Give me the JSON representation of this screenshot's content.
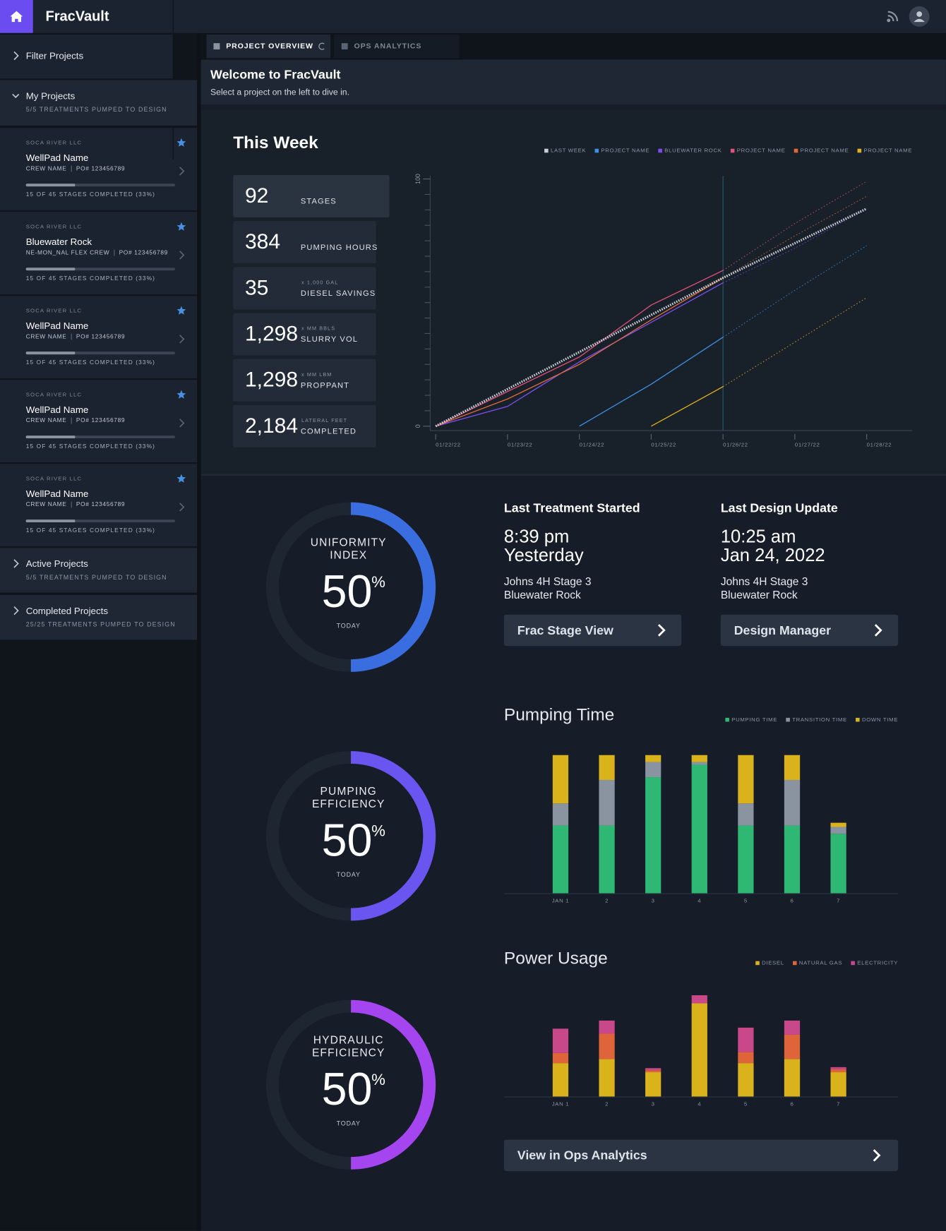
{
  "header": {
    "brand": "FracVault"
  },
  "sidebar": {
    "filter": "Filter Projects",
    "my_projects": {
      "title": "My Projects",
      "subtitle": "5/5 TREATMENTS PUMPED TO DESIGN"
    },
    "projects": [
      {
        "company": "SOCA RIVER LLC",
        "name": "WellPad Name",
        "crew": "CREW NAME",
        "po": "PO# 123456789",
        "status": "15 OF 45 STAGES COMPLETED (33%)",
        "progress": 33
      },
      {
        "company": "SOCA RIVER LLC",
        "name": "Bluewater Rock",
        "crew": "NE-MON_NAL FLEX CREW",
        "po": "PO# 123456789",
        "status": "15 OF 45 STAGES COMPLETED (33%)",
        "progress": 33
      },
      {
        "company": "SOCA RIVER LLC",
        "name": "WellPad Name",
        "crew": "CREW NAME",
        "po": "PO# 123456789",
        "status": "15 OF 45 STAGES COMPLETED (33%)",
        "progress": 33
      },
      {
        "company": "SOCA RIVER LLC",
        "name": "WellPad Name",
        "crew": "CREW NAME",
        "po": "PO# 123456789",
        "status": "15 OF 45 STAGES COMPLETED (33%)",
        "progress": 33
      },
      {
        "company": "SOCA RIVER LLC",
        "name": "WellPad Name",
        "crew": "CREW NAME",
        "po": "PO# 123456789",
        "status": "15 OF 45 STAGES COMPLETED (33%)",
        "progress": 33
      }
    ],
    "active": {
      "title": "Active Projects",
      "subtitle": "5/5 TREATMENTS PUMPED TO DESIGN"
    },
    "completed": {
      "title": "Completed Projects",
      "subtitle": "25/25 TREATMENTS PUMPED TO DESIGN"
    }
  },
  "tabs": [
    "PROJECT OVERVIEW",
    "OPS ANALYTICS"
  ],
  "welcome": {
    "title": "Welcome to FracVault",
    "subtitle": "Select a project on the left to dive in."
  },
  "this_week": {
    "title": "This Week",
    "stats": [
      {
        "value": 92,
        "label": "STAGES"
      },
      {
        "value": 384,
        "label": "PUMPING HOURS"
      },
      {
        "value": 35,
        "unit": "x 1,000 GAL",
        "label": "DIESEL SAVINGS"
      },
      {
        "value": "1,298",
        "unit": "x MM BBLS",
        "label": "SLURRY VOL"
      },
      {
        "value": "1,298",
        "unit": "x MM LBM",
        "label": "PROPPANT"
      },
      {
        "value": "2,184",
        "unit": "LATERAL FEET",
        "label": "COMPLETED"
      }
    ],
    "chart": {
      "type": "line",
      "x": [
        "01/22/22",
        "01/23/22",
        "01/24/22",
        "01/25/22",
        "01/26/22",
        "01/27/22",
        "01/28/22"
      ],
      "ylim": [
        0,
        100
      ],
      "yticks": [
        0,
        100
      ],
      "minor_yticks": [
        6.25,
        12.5,
        18.75,
        25,
        31.25,
        37.5,
        43.75,
        50,
        56.25,
        62.5,
        68.75,
        75,
        81.25,
        87.5,
        93.75
      ],
      "reference_x": "01/26/22",
      "series": [
        {
          "name": "LAST WEEK",
          "color": "#c9ced6",
          "style": "dotted",
          "values": [
            0,
            15,
            30,
            45,
            60,
            74,
            88
          ]
        },
        {
          "name": "PROJECT NAME",
          "color": "#3d8fe0",
          "values": [
            null,
            null,
            0,
            17,
            36,
            null,
            null
          ],
          "projection": [
            null,
            null,
            null,
            null,
            36,
            55,
            73
          ]
        },
        {
          "name": "BLUEWATER ROCK",
          "color": "#7a4ff0",
          "values": [
            0,
            8,
            26,
            42,
            58,
            null,
            null
          ],
          "projection": [
            null,
            null,
            null,
            null,
            58,
            72,
            88
          ]
        },
        {
          "name": "PROJECT NAME",
          "color": "#e0507a",
          "values": [
            0,
            14,
            28,
            49,
            63,
            null,
            null
          ],
          "projection": [
            null,
            null,
            null,
            null,
            63,
            82,
            99
          ]
        },
        {
          "name": "PROJECT NAME",
          "color": "#e06a3a",
          "values": [
            0,
            11,
            25,
            43,
            60,
            null,
            null
          ],
          "projection": [
            null,
            null,
            null,
            null,
            60,
            77,
            93
          ]
        },
        {
          "name": "PROJECT NAME",
          "color": "#e0b020",
          "values": [
            null,
            null,
            null,
            0,
            16,
            null,
            null
          ],
          "projection": [
            null,
            null,
            null,
            null,
            16,
            34,
            52
          ]
        }
      ]
    }
  },
  "gauges": [
    {
      "label": [
        "UNIFORMITY",
        "INDEX"
      ],
      "value": 50,
      "unit": "%",
      "caption": "TODAY",
      "color": "#3a6ee0"
    },
    {
      "label": [
        "PUMPING",
        "EFFICIENCY"
      ],
      "value": 50,
      "unit": "%",
      "caption": "TODAY",
      "color": "#6a55f0"
    },
    {
      "label": [
        "HYDRAULIC",
        "EFFICIENCY"
      ],
      "value": 50,
      "unit": "%",
      "caption": "TODAY",
      "color": "#a545f0"
    }
  ],
  "cards": [
    {
      "title": "Last Treatment Started",
      "time": "8:39 pm",
      "date": "Yesterday",
      "lines": [
        "Johns 4H Stage 3",
        "Bluewater Rock"
      ],
      "button": "Frac Stage View"
    },
    {
      "title": "Last Design Update",
      "time": "10:25 am",
      "date": "Jan 24, 2022",
      "lines": [
        "Johns 4H Stage 3",
        "Bluewater Rock"
      ],
      "button": "Design Manager"
    }
  ],
  "pumping_time": {
    "type": "bar",
    "stacked": true,
    "title": "Pumping Time",
    "categories": [
      "JAN 1",
      "2",
      "3",
      "4",
      "5",
      "6",
      "7"
    ],
    "ylim": [
      0,
      100
    ],
    "series": [
      {
        "name": "PUMPING TIME",
        "color": "#2fb874",
        "values": [
          49,
          49,
          84,
          93,
          49,
          49,
          43
        ]
      },
      {
        "name": "TRANSITION TIME",
        "color": "#8a94a0",
        "values": [
          16,
          33,
          11,
          2,
          16,
          33,
          5
        ]
      },
      {
        "name": "DOWN TIME",
        "color": "#d9b21c",
        "values": [
          35,
          18,
          5,
          5,
          35,
          18,
          3
        ]
      }
    ]
  },
  "power_usage": {
    "type": "bar",
    "stacked": true,
    "title": "Power Usage",
    "categories": [
      "JAN 1",
      "2",
      "3",
      "4",
      "5",
      "6",
      "7"
    ],
    "ylim": [
      0,
      100
    ],
    "series": [
      {
        "name": "DIESEL",
        "color": "#d9b21c",
        "values": [
          33,
          37,
          24,
          92,
          33,
          37,
          24
        ]
      },
      {
        "name": "NATURAL GAS",
        "color": "#e0643a",
        "values": [
          10,
          25,
          2,
          0,
          11,
          24,
          3
        ]
      },
      {
        "name": "ELECTRICITY",
        "color": "#c8488a",
        "values": [
          24,
          13,
          2,
          8,
          24,
          14,
          2
        ]
      }
    ]
  },
  "ops_button": "View in Ops Analytics"
}
